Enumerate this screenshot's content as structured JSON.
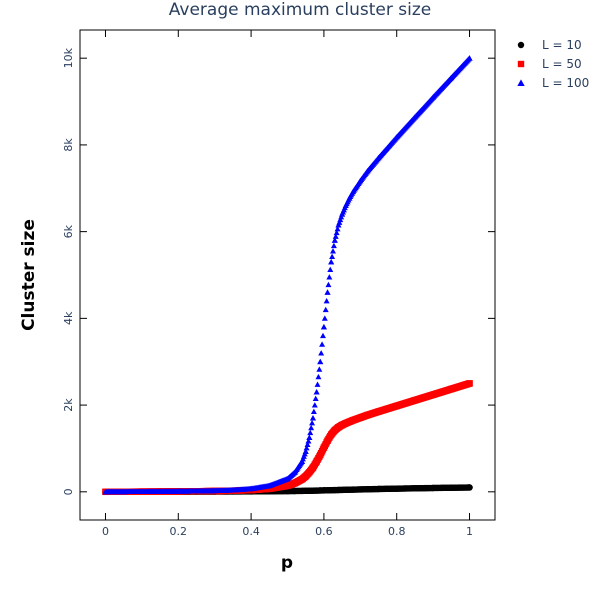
{
  "chart_data": {
    "type": "scatter",
    "title": "Average maximum cluster size",
    "xlabel": "p",
    "ylabel": "Cluster size",
    "xlim": [
      -0.07,
      1.07
    ],
    "ylim": [
      -650,
      10650
    ],
    "x_ticks": [
      0,
      0.2,
      0.4,
      0.6,
      0.8,
      1
    ],
    "x_tick_labels": [
      "0",
      "0.2",
      "0.4",
      "0.6",
      "0.8",
      "1"
    ],
    "y_ticks": [
      0,
      2000,
      4000,
      6000,
      8000,
      10000
    ],
    "y_tick_labels": [
      "0",
      "2k",
      "4k",
      "6k",
      "8k",
      "10k"
    ],
    "grid": false,
    "legend_position": "top-right",
    "x": [
      0,
      0.05,
      0.1,
      0.15,
      0.2,
      0.25,
      0.3,
      0.35,
      0.4,
      0.45,
      0.5,
      0.52,
      0.54,
      0.55,
      0.56,
      0.57,
      0.58,
      0.59,
      0.6,
      0.61,
      0.62,
      0.63,
      0.64,
      0.65,
      0.66,
      0.67,
      0.68,
      0.7,
      0.72,
      0.75,
      0.8,
      0.85,
      0.9,
      0.95,
      1
    ],
    "series": [
      {
        "name": "L = 10",
        "color": "#000000",
        "marker": "circle",
        "values": [
          0,
          1,
          2,
          3,
          4,
          5,
          6,
          8,
          10,
          13,
          17,
          19,
          21,
          23,
          25,
          27,
          29,
          31,
          33,
          35,
          38,
          40,
          42,
          44,
          47,
          49,
          51,
          55,
          59,
          65,
          73,
          81,
          88,
          94,
          100
        ]
      },
      {
        "name": "L = 50",
        "color": "#ff0000",
        "marker": "square",
        "values": [
          0,
          2,
          4,
          6,
          9,
          13,
          18,
          25,
          40,
          70,
          140,
          200,
          290,
          360,
          450,
          560,
          700,
          850,
          1020,
          1180,
          1320,
          1420,
          1490,
          1540,
          1580,
          1615,
          1650,
          1710,
          1770,
          1850,
          1980,
          2110,
          2240,
          2370,
          2500
        ]
      },
      {
        "name": "L = 100",
        "color": "#0000ff",
        "marker": "triangle",
        "values": [
          0,
          3,
          5,
          8,
          12,
          17,
          25,
          40,
          70,
          140,
          300,
          450,
          700,
          930,
          1250,
          1700,
          2300,
          3000,
          3800,
          4600,
          5300,
          5800,
          6150,
          6400,
          6600,
          6770,
          6920,
          7170,
          7400,
          7700,
          8180,
          8640,
          9100,
          9550,
          10000
        ]
      }
    ]
  }
}
